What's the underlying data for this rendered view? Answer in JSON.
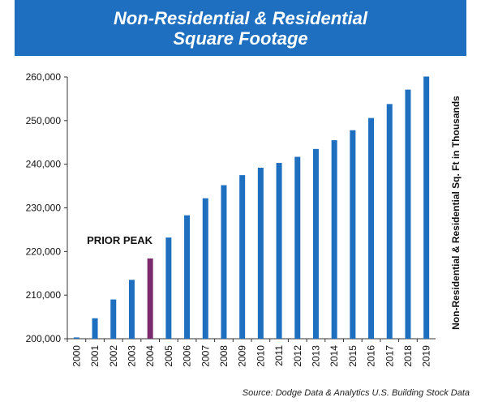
{
  "title": {
    "line1": "Non-Residential & Residential",
    "line2": "Square Footage"
  },
  "source": "Source:  Dodge Data & Analytics U.S. Building Stock Data",
  "colors": {
    "banner": "#1f6fc0",
    "bar": "#1f6fc0",
    "highlight": "#7b2a6e"
  },
  "chart_data": {
    "type": "bar",
    "categories": [
      "2000",
      "2001",
      "2002",
      "2003",
      "2004",
      "2005",
      "2006",
      "2007",
      "2008",
      "2009",
      "2010",
      "2011",
      "2012",
      "2013",
      "2014",
      "2015",
      "2016",
      "2017",
      "2018",
      "2019"
    ],
    "values": [
      200300,
      204700,
      209000,
      213500,
      218400,
      223200,
      228300,
      232200,
      235200,
      237500,
      239200,
      240300,
      241700,
      243500,
      245500,
      247800,
      250600,
      253800,
      257100,
      260100
    ],
    "highlight_index": 4,
    "annotation": "PRIOR PEAK",
    "ylabel": "Non-Residential & Residential Sq. Ft in Thousands",
    "xlabel": "",
    "ylim": [
      200000,
      260000
    ],
    "yticks": [
      200000,
      210000,
      220000,
      230000,
      240000,
      250000,
      260000
    ],
    "ytick_labels": [
      "200,000",
      "210,000",
      "220,000",
      "230,000",
      "240,000",
      "250,000",
      "260,000"
    ],
    "ylabel_side": "right",
    "grid": false
  }
}
